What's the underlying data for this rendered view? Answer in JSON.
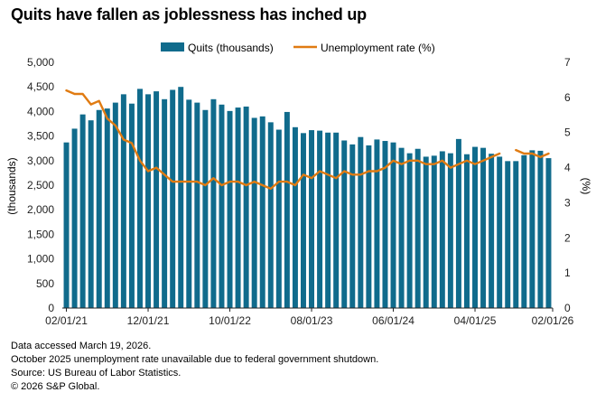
{
  "title": "Quits have fallen as joblessness has inched up",
  "chart_data": {
    "type": "bar+line",
    "title": "Quits have fallen as joblessness has inched up",
    "legend": [
      {
        "name": "Quits (thousands)",
        "kind": "bar",
        "color": "#106b8c"
      },
      {
        "name": "Unemployment rate (%)",
        "kind": "line",
        "color": "#e07b12"
      }
    ],
    "legend_position": "top-center",
    "ylabel_left": "(thousands)",
    "ylabel_right": "(%)",
    "ylim_left": [
      0,
      5000
    ],
    "ylim_right": [
      0,
      7
    ],
    "yticks_left": [
      "0",
      "500",
      "1,000",
      "1,500",
      "2,000",
      "2,500",
      "3,000",
      "3,500",
      "4,000",
      "4,500",
      "5,000"
    ],
    "yticks_right": [
      "0",
      "1",
      "2",
      "3",
      "4",
      "5",
      "6",
      "7"
    ],
    "x_tick_labels": [
      {
        "index": 0,
        "label": "02/01/21"
      },
      {
        "index": 10,
        "label": "12/01/21"
      },
      {
        "index": 20,
        "label": "10/01/22"
      },
      {
        "index": 30,
        "label": "08/01/23"
      },
      {
        "index": 40,
        "label": "06/01/24"
      },
      {
        "index": 50,
        "label": "04/01/25"
      },
      {
        "index": 60,
        "label": "02/01/26"
      }
    ],
    "series": [
      {
        "name": "Quits (thousands)",
        "values": [
          3370,
          3650,
          3940,
          3820,
          4030,
          4060,
          4180,
          4350,
          4160,
          4460,
          4350,
          4410,
          4250,
          4440,
          4500,
          4240,
          4180,
          4030,
          4250,
          4140,
          4010,
          4080,
          4100,
          3870,
          3900,
          3780,
          3630,
          3990,
          3680,
          3560,
          3620,
          3610,
          3570,
          3570,
          3410,
          3330,
          3480,
          3310,
          3430,
          3400,
          3370,
          3260,
          3150,
          3240,
          3080,
          3100,
          3190,
          3150,
          3440,
          3130,
          3280,
          3260,
          3140,
          3080,
          2990,
          2990,
          3110,
          3210,
          3200,
          3050
        ]
      },
      {
        "name": "Unemployment rate (%)",
        "values": [
          6.2,
          6.1,
          6.1,
          5.8,
          5.9,
          5.4,
          5.2,
          4.8,
          4.7,
          4.2,
          3.9,
          4.0,
          3.8,
          3.6,
          3.6,
          3.6,
          3.6,
          3.5,
          3.7,
          3.5,
          3.6,
          3.6,
          3.5,
          3.6,
          3.5,
          3.4,
          3.6,
          3.6,
          3.5,
          3.8,
          3.7,
          3.9,
          3.8,
          3.7,
          3.9,
          3.8,
          3.8,
          3.9,
          3.9,
          4.0,
          4.2,
          4.1,
          4.2,
          4.2,
          4.1,
          4.1,
          4.2,
          4.0,
          4.1,
          4.2,
          4.1,
          4.2,
          4.3,
          4.4,
          null,
          4.5,
          4.4,
          4.4,
          4.3,
          4.4
        ]
      }
    ]
  },
  "notes": [
    "Data accessed March 19, 2026.",
    "October 2025 unemployment rate unavailable due to federal government shutdown.",
    "Source: US Bureau of Labor Statistics.",
    "© 2026 S&P Global."
  ]
}
